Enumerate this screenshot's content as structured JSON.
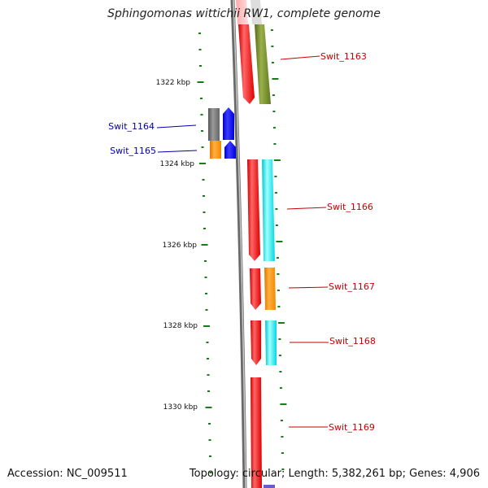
{
  "title": "Sphingomonas wittichii RW1, complete genome",
  "accession": "Accession: NC_009511",
  "topology": "Topology: circular; Length: 5,382,261 bp; Genes: 4,906",
  "colors": {
    "tick": "#1a7a1a",
    "forward_label": "#cc0000",
    "reverse_label": "#0000aa",
    "backbone": "#888888"
  },
  "kbp_labels": [
    "1322 kbp",
    "1324 kbp",
    "1326 kbp",
    "1328 kbp",
    "1330 kbp"
  ],
  "genes": [
    {
      "name": "",
      "strand": "forward",
      "cog_color": "#6b8e23"
    },
    {
      "name": "Swit_1163",
      "strand": "forward",
      "cog_color": "#6b8e23"
    },
    {
      "name": "Swit_1164",
      "strand": "reverse",
      "cog_color": "#666666"
    },
    {
      "name": "Swit_1165",
      "strand": "reverse",
      "cog_color": "#ff8c00"
    },
    {
      "name": "Swit_1166",
      "strand": "forward",
      "cog_color": "#00e5ee"
    },
    {
      "name": "Swit_1167",
      "strand": "forward",
      "cog_color": "#ff8c00"
    },
    {
      "name": "Swit_1168",
      "strand": "forward",
      "cog_color": "#00e5ee"
    },
    {
      "name": "Swit_1169",
      "strand": "forward",
      "cog_color": ""
    }
  ]
}
